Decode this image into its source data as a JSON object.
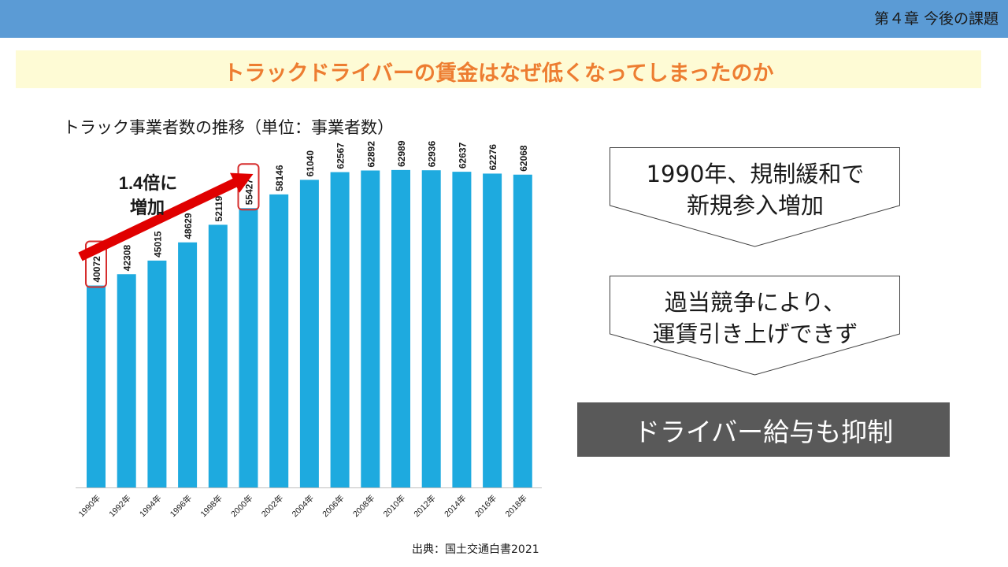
{
  "header": {
    "chapter": "第４章 今後の課題",
    "bar_color": "#5b9bd5"
  },
  "title": {
    "text": "トラックドライバーの賃金はなぜ低くなってしまったのか",
    "color": "#ed7d31",
    "background": "#fefbd5"
  },
  "chart_caption": "トラック事業者数の推移（単位：事業者数）",
  "chart_data": {
    "type": "bar",
    "title": "トラック事業者数の推移（単位：事業者数）",
    "xlabel": "",
    "ylabel": "事業者数",
    "categories": [
      "1990年",
      "1992年",
      "1994年",
      "1996年",
      "1998年",
      "2000年",
      "2002年",
      "2004年",
      "2006年",
      "2008年",
      "2010年",
      "2012年",
      "2014年",
      "2016年",
      "2018年"
    ],
    "values": [
      40072,
      42308,
      45015,
      48629,
      52119,
      55427,
      58146,
      61040,
      62567,
      62892,
      62989,
      62936,
      62637,
      62276,
      62068
    ],
    "ylim": [
      0,
      70000
    ],
    "bar_color": "#1eaadf",
    "highlighted_categories": [
      "1990年",
      "2000年"
    ],
    "highlight_color": "#d62d2d",
    "annotation": {
      "text_line1": "1.4倍に",
      "text_line2": "増加",
      "arrow_color": "#e00000",
      "from": "1990年",
      "to": "2000年"
    }
  },
  "source": "出典：国土交通白書2021",
  "callouts": [
    {
      "line1": "1990年、規制緩和で",
      "line2": "新規参入増加"
    },
    {
      "line1": "過当競争により、",
      "line2": "運賃引き上げできず"
    }
  ],
  "result": {
    "text": "ドライバー給与も抑制",
    "background": "#595959"
  }
}
